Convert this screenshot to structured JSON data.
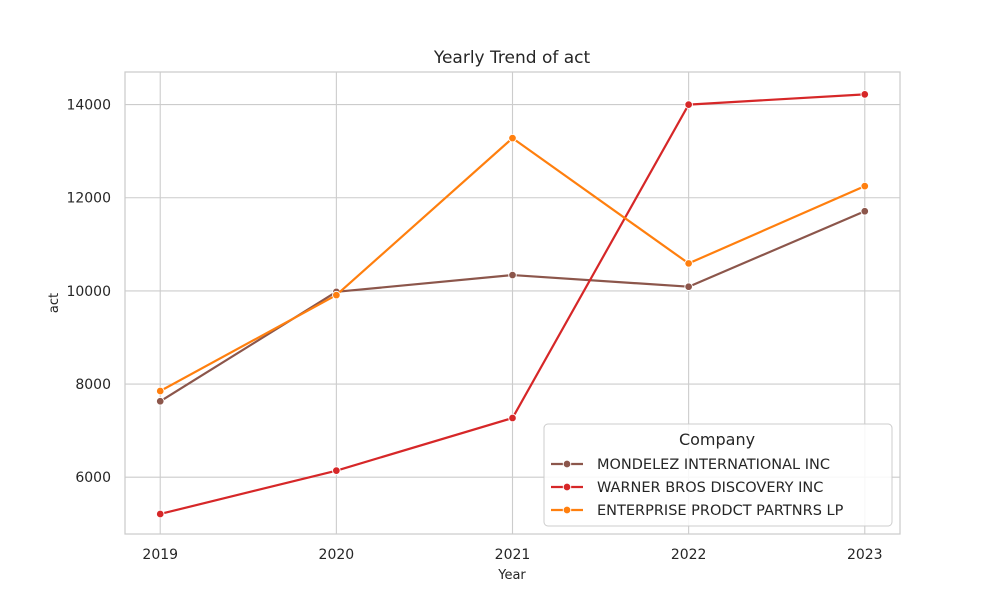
{
  "chart_data": {
    "type": "line",
    "title": "Yearly Trend of act",
    "xlabel": "Year",
    "ylabel": "act",
    "x": [
      2019,
      2020,
      2021,
      2022,
      2023
    ],
    "x_tick_labels": [
      "2019",
      "2020",
      "2021",
      "2022",
      "2023"
    ],
    "y_ticks": [
      6000,
      8000,
      10000,
      12000,
      14000
    ],
    "y_tick_labels": [
      "6000",
      "8000",
      "10000",
      "12000",
      "14000"
    ],
    "ylim": [
      4780,
      14700
    ],
    "xlim": [
      2018.8,
      2023.2
    ],
    "grid": true,
    "legend": {
      "title": "Company",
      "placement": "lower-right"
    },
    "series": [
      {
        "name": "MONDELEZ INTERNATIONAL INC",
        "color": "#8c564b",
        "values": [
          7630,
          9980,
          10340,
          10090,
          11710
        ]
      },
      {
        "name": "WARNER BROS DISCOVERY INC",
        "color": "#d62728",
        "values": [
          5210,
          6140,
          7270,
          14000,
          14220
        ]
      },
      {
        "name": "ENTERPRISE PRODCT PARTNRS LP",
        "color": "#ff7f0e",
        "values": [
          7850,
          9910,
          13280,
          10590,
          12250
        ]
      }
    ]
  }
}
